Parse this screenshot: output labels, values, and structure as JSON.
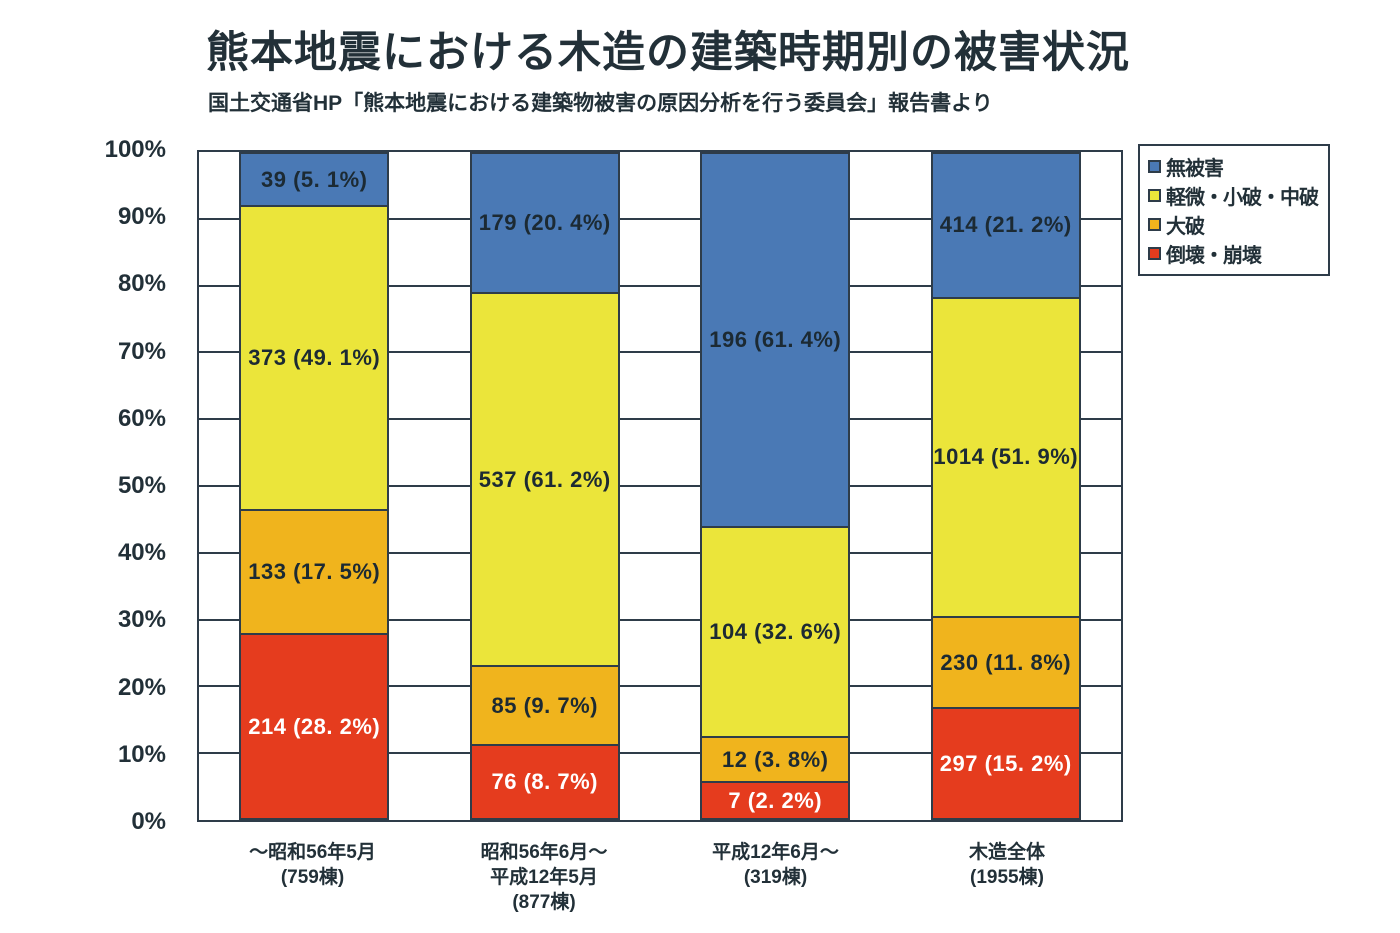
{
  "title": "熊本地震における木造の建築時期別の被害状況",
  "subtitle": "国土交通省HP「熊本地震における建築物被害の原因分析を行う委員会」報告書より",
  "colors": {
    "blue": "#4a79b5",
    "yellow": "#ebe53a",
    "orange": "#f0b41d",
    "red": "#e53c1e",
    "line": "#2e3c49",
    "text_dark": "#1c2a33",
    "text_light": "#ffffff",
    "background": "#ffffff"
  },
  "chart_data": {
    "type": "bar",
    "stacked": true,
    "orientation": "vertical",
    "units": "percent of buildings (100% stacked)",
    "ylim": [
      0,
      100
    ],
    "yticks": [
      "0%",
      "10%",
      "20%",
      "30%",
      "40%",
      "50%",
      "60%",
      "70%",
      "80%",
      "90%",
      "100%"
    ],
    "grid": "horizontal lines every 10%",
    "legend_position": "top-right",
    "categories": [
      {
        "lines": [
          "～昭和56年5月",
          "(759棟)"
        ],
        "total_buildings": 759
      },
      {
        "lines": [
          "昭和56年6月～",
          "平成12年5月",
          "(877棟)"
        ],
        "total_buildings": 877
      },
      {
        "lines": [
          "平成12年6月～",
          "(319棟)"
        ],
        "total_buildings": 319
      },
      {
        "lines": [
          "木造全体",
          "(1955棟)"
        ],
        "total_buildings": 1955
      }
    ],
    "series": [
      {
        "name": "無被害",
        "color_key": "blue",
        "label_color": "dark",
        "counts": [
          39,
          179,
          196,
          414
        ],
        "percents": [
          5.1,
          20.4,
          61.4,
          21.2
        ],
        "labels": [
          "39 (5. 1%)",
          "179 (20. 4%)",
          "196 (61. 4%)",
          "414 (21. 2%)"
        ]
      },
      {
        "name": "軽微・小破・中破",
        "color_key": "yellow",
        "label_color": "dark",
        "counts": [
          373,
          537,
          104,
          1014
        ],
        "percents": [
          49.1,
          61.2,
          32.6,
          51.9
        ],
        "labels": [
          "373 (49. 1%)",
          "537 (61. 2%)",
          "104 (32. 6%)",
          "1014 (51. 9%)"
        ]
      },
      {
        "name": "大破",
        "color_key": "orange",
        "label_color": "dark",
        "counts": [
          133,
          85,
          12,
          230
        ],
        "percents": [
          17.5,
          9.7,
          3.8,
          11.8
        ],
        "labels": [
          "133 (17. 5%)",
          "85 (9. 7%)",
          "12 (3. 8%)",
          "230 (11. 8%)"
        ]
      },
      {
        "name": "倒壊・崩壊",
        "color_key": "red",
        "label_color": "light",
        "counts": [
          214,
          76,
          7,
          297
        ],
        "percents": [
          28.2,
          8.7,
          2.2,
          15.2
        ],
        "labels": [
          "214 (28. 2%)",
          "76 (8. 7%)",
          "7 (2. 2%)",
          "297 (15. 2%)"
        ]
      }
    ]
  }
}
